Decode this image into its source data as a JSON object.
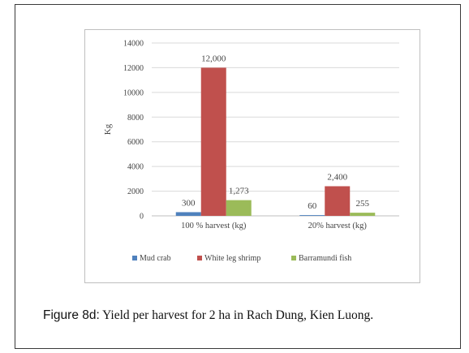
{
  "chart_data": {
    "type": "bar",
    "ylabel": "Kg",
    "ylim": [
      0,
      14000
    ],
    "yticks": [
      0,
      2000,
      4000,
      6000,
      8000,
      10000,
      12000,
      14000
    ],
    "grid": true,
    "legend_position": "bottom",
    "categories": [
      "100 % harvest (kg)",
      "20% harvest (kg)"
    ],
    "series": [
      {
        "name": "Mud crab",
        "values": [
          300,
          60
        ],
        "labels": [
          "300",
          "60"
        ],
        "color": "#4f81bd"
      },
      {
        "name": "White leg shrimp",
        "values": [
          12000,
          2400
        ],
        "labels": [
          "12,000",
          "2,400"
        ],
        "color": "#c0504d"
      },
      {
        "name": "Barramundi fish",
        "values": [
          1273,
          255
        ],
        "labels": [
          "1,273",
          "255"
        ],
        "color": "#9bbb59"
      }
    ]
  },
  "caption": {
    "label": "Figure 8d:",
    "text": " Yield per harvest for 2 ha in Rach Dung, Kien Luong."
  }
}
